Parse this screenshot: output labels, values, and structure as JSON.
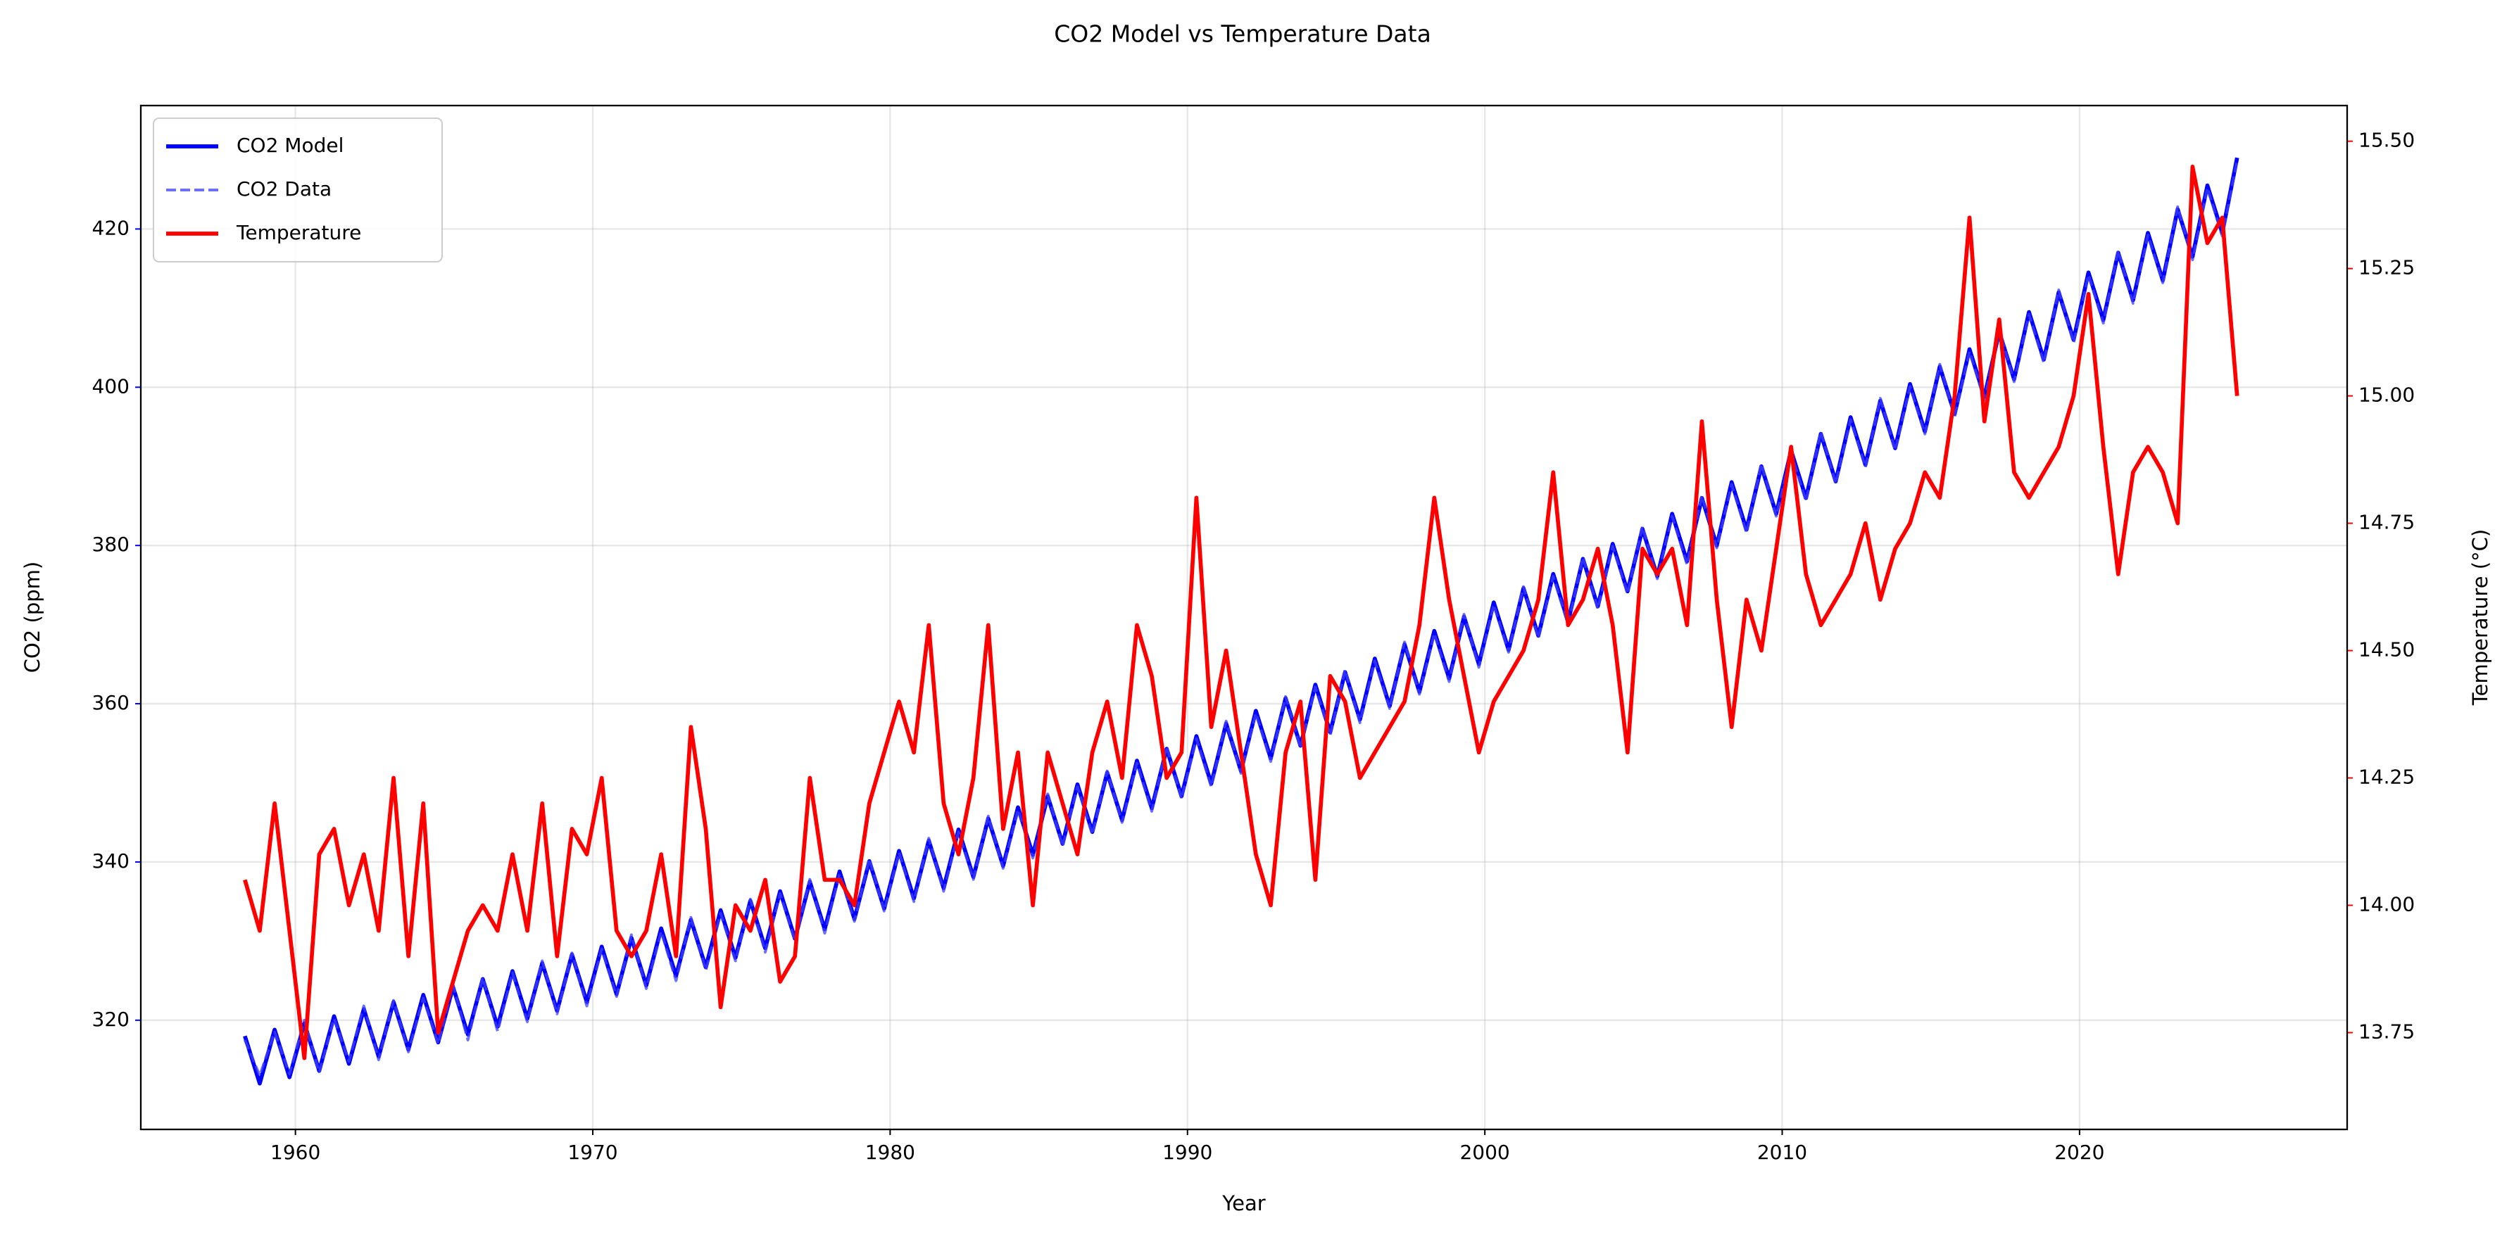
{
  "chart_data": {
    "type": "line",
    "title": "CO2 Model vs Temperature Data",
    "xlabel": "Year",
    "ylabel": "CO2 (ppm)",
    "y2label": "Temperature (°C)",
    "ycolor": "#0000ff",
    "y2color": "#ff0000",
    "grid": true,
    "legend": "upper left",
    "xlim": [
      1954.8,
      2029.0
    ],
    "ylim": [
      306.2,
      435.6
    ],
    "y2lim": [
      13.56,
      15.57
    ],
    "xticks": [
      1960,
      1970,
      1980,
      1990,
      2000,
      2010,
      2020
    ],
    "yticks": [
      320,
      340,
      360,
      380,
      400,
      420
    ],
    "y2ticks": [
      13.75,
      {
        "value": 14,
        "label": "14.00"
      },
      14.25,
      {
        "value": 14.5,
        "label": "14.50"
      },
      14.75,
      {
        "value": 15,
        "label": "15.00"
      },
      15.25,
      {
        "value": 15.5,
        "label": "15.50"
      }
    ],
    "x": [
      1958.3,
      1958.8,
      1959.3,
      1959.8,
      1960.3,
      1960.8,
      1961.3,
      1961.8,
      1962.3,
      1962.8,
      1963.3,
      1963.8,
      1964.3,
      1964.8,
      1965.3,
      1965.8,
      1966.3,
      1966.8,
      1967.3,
      1967.8,
      1968.3,
      1968.8,
      1969.3,
      1969.8,
      1970.3,
      1970.8,
      1971.3,
      1971.8,
      1972.3,
      1972.8,
      1973.3,
      1973.8,
      1974.3,
      1974.8,
      1975.3,
      1975.8,
      1976.3,
      1976.8,
      1977.3,
      1977.8,
      1978.3,
      1978.8,
      1979.3,
      1979.8,
      1980.3,
      1980.8,
      1981.3,
      1981.8,
      1982.3,
      1982.8,
      1983.3,
      1983.8,
      1984.3,
      1984.8,
      1985.3,
      1985.8,
      1986.3,
      1986.8,
      1987.3,
      1987.8,
      1988.3,
      1988.8,
      1989.3,
      1989.8,
      1990.3,
      1990.8,
      1991.3,
      1991.8,
      1992.3,
      1992.8,
      1993.3,
      1993.8,
      1994.3,
      1994.8,
      1995.3,
      1995.8,
      1996.3,
      1996.8,
      1997.3,
      1997.8,
      1998.3,
      1998.8,
      1999.3,
      1999.8,
      2000.3,
      2000.8,
      2001.3,
      2001.8,
      2002.3,
      2002.8,
      2003.3,
      2003.8,
      2004.3,
      2004.8,
      2005.3,
      2005.8,
      2006.3,
      2006.8,
      2007.3,
      2007.8,
      2008.3,
      2008.8,
      2009.3,
      2009.8,
      2010.3,
      2010.8,
      2011.3,
      2011.8,
      2012.3,
      2012.8,
      2013.3,
      2013.8,
      2014.3,
      2014.8,
      2015.3,
      2015.8,
      2016.3,
      2016.8,
      2017.3,
      2017.8,
      2018.3,
      2018.8,
      2019.3,
      2019.8,
      2020.3,
      2020.8,
      2021.3,
      2021.8,
      2022.3,
      2022.8,
      2023.3,
      2023.8,
      2024.3,
      2024.8,
      2025.3
    ],
    "series": [
      {
        "name": "CO2 Model",
        "color": "#0000ff",
        "axis": "y",
        "dash": false,
        "values": [
          318,
          312,
          318.8,
          312.8,
          319.6,
          313.6,
          320.5,
          314.5,
          321.4,
          315.4,
          322.3,
          316.3,
          323.2,
          317.2,
          324.2,
          318.2,
          325.2,
          319.2,
          326.2,
          320.2,
          327.2,
          321.2,
          328.3,
          322.3,
          329.3,
          323.3,
          330.4,
          324.4,
          331.6,
          325.6,
          332.7,
          326.7,
          333.9,
          327.9,
          335.1,
          329.1,
          336.3,
          330.3,
          337.5,
          331.5,
          338.8,
          332.8,
          340.1,
          334.1,
          341.4,
          335.4,
          342.7,
          336.7,
          344.1,
          338.1,
          345.5,
          339.5,
          346.9,
          340.9,
          348.3,
          342.3,
          349.8,
          343.8,
          351.3,
          345.3,
          352.8,
          346.8,
          354.3,
          348.3,
          355.9,
          349.9,
          357.5,
          351.5,
          359.1,
          353.1,
          360.7,
          354.7,
          362.4,
          356.4,
          364,
          358,
          365.7,
          359.7,
          367.5,
          361.5,
          369.2,
          363.2,
          371,
          365,
          372.8,
          366.8,
          374.6,
          368.6,
          376.4,
          370.4,
          378.3,
          372.3,
          380.2,
          374.2,
          382.1,
          376.1,
          384,
          378,
          386,
          380,
          388,
          382,
          390,
          384,
          392,
          386,
          394.1,
          388.1,
          396.2,
          390.2,
          398.3,
          392.3,
          400.4,
          394.4,
          402.6,
          396.6,
          404.8,
          398.8,
          407,
          401,
          409.5,
          403.5,
          412,
          406,
          414.5,
          408.5,
          417,
          411,
          419.5,
          413.5,
          422.5,
          416.5,
          425.5,
          419.5,
          429
        ]
      },
      {
        "name": "CO2 Data",
        "color": "#3f3fff",
        "axis": "y",
        "dash": true,
        "values": [
          317.5,
          313,
          318.5,
          313.2,
          320,
          313.4,
          320.2,
          314.8,
          321.8,
          315,
          322.5,
          316,
          322.8,
          317,
          324.5,
          317.5,
          325.4,
          318.6,
          326,
          319.8,
          327.5,
          320.8,
          328.5,
          321.8,
          329,
          323,
          330.8,
          324,
          331.2,
          325,
          333,
          326.3,
          333.5,
          327.5,
          335.3,
          328.6,
          336,
          330,
          337.8,
          331,
          338.5,
          332.5,
          340.4,
          333.8,
          341.2,
          335,
          343,
          336.3,
          343.8,
          337.8,
          345.8,
          339.2,
          346.6,
          340.5,
          348.6,
          342,
          349.5,
          343.5,
          351.5,
          345,
          352.5,
          346.4,
          354.6,
          348,
          355.6,
          349.5,
          357.8,
          351.2,
          358.8,
          352.7,
          360.9,
          354.4,
          362.1,
          356,
          364.3,
          357.6,
          365.4,
          359.4,
          367.8,
          361.2,
          368.9,
          362.8,
          371.3,
          364.6,
          372.5,
          366.5,
          374.8,
          368.3,
          376.1,
          370,
          378.5,
          372,
          379.9,
          373.9,
          382.4,
          375.8,
          383.7,
          377.6,
          386.3,
          379.7,
          387.7,
          381.6,
          390.3,
          383.7,
          391.7,
          385.6,
          394.4,
          387.8,
          395.9,
          389.9,
          398.6,
          392,
          400.1,
          394.1,
          402.9,
          396.3,
          404.5,
          398.4,
          407.3,
          400.7,
          409.2,
          403.1,
          412.3,
          405.6,
          414.2,
          408.1,
          417.3,
          410.6,
          419.2,
          413.2,
          422.8,
          416.1,
          425.2,
          419.1,
          428.7
        ]
      },
      {
        "name": "Temperature",
        "color": "#ff0000",
        "axis": "y2",
        "dash": false,
        "values": [
          14.05,
          13.95,
          14.2,
          13.95,
          13.7,
          14.1,
          14.15,
          14,
          14.1,
          13.95,
          14.25,
          13.9,
          14.2,
          13.75,
          13.85,
          13.95,
          14,
          13.95,
          14.1,
          13.95,
          14.2,
          13.9,
          14.15,
          14.1,
          14.25,
          13.95,
          13.9,
          13.95,
          14.1,
          13.9,
          14.35,
          14.15,
          13.8,
          14,
          13.95,
          14.05,
          13.85,
          13.9,
          14.25,
          14.05,
          14.05,
          14,
          14.2,
          14.3,
          14.4,
          14.3,
          14.55,
          14.2,
          14.1,
          14.25,
          14.55,
          14.15,
          14.3,
          14,
          14.3,
          14.2,
          14.1,
          14.3,
          14.4,
          14.25,
          14.55,
          14.45,
          14.25,
          14.3,
          14.8,
          14.35,
          14.5,
          14.3,
          14.1,
          14,
          14.3,
          14.4,
          14.05,
          14.45,
          14.4,
          14.25,
          14.3,
          14.35,
          14.4,
          14.55,
          14.8,
          14.6,
          14.45,
          14.3,
          14.4,
          14.45,
          14.5,
          14.6,
          14.85,
          14.55,
          14.6,
          14.7,
          14.55,
          14.3,
          14.7,
          14.65,
          14.7,
          14.55,
          14.95,
          14.6,
          14.35,
          14.6,
          14.5,
          14.7,
          14.9,
          14.65,
          14.55,
          14.6,
          14.65,
          14.75,
          14.6,
          14.7,
          14.75,
          14.85,
          14.8,
          15,
          15.35,
          14.95,
          15.15,
          14.85,
          14.8,
          14.85,
          14.9,
          15,
          15.2,
          14.9,
          14.65,
          14.85,
          14.9,
          14.85,
          14.75,
          15.45,
          15.3,
          15.35,
          15
        ]
      }
    ]
  }
}
